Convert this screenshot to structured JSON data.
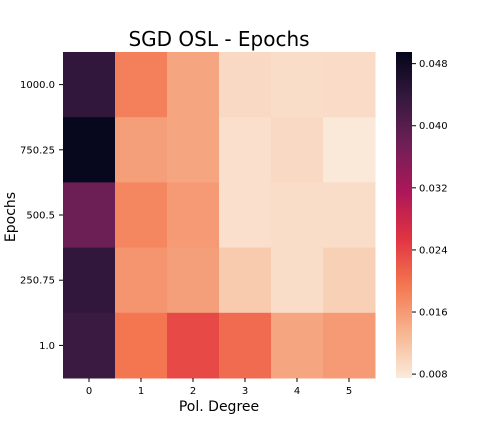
{
  "chart_data": {
    "type": "heatmap",
    "title": "SGD OSL - Epochs",
    "xlabel": "Pol. Degree",
    "ylabel": "Epochs",
    "x_categories": [
      "0",
      "1",
      "2",
      "3",
      "4",
      "5"
    ],
    "y_categories": [
      "1000.0",
      "750.25",
      "500.5",
      "250.75",
      "1.0"
    ],
    "values": [
      [
        0.044,
        0.0185,
        0.015,
        0.0095,
        0.009,
        0.0092
      ],
      [
        0.049,
        0.0155,
        0.015,
        0.0088,
        0.0095,
        0.0078
      ],
      [
        0.038,
        0.018,
        0.016,
        0.0088,
        0.009,
        0.009
      ],
      [
        0.044,
        0.0165,
        0.0155,
        0.011,
        0.009,
        0.0105
      ],
      [
        0.043,
        0.0195,
        0.0235,
        0.0205,
        0.015,
        0.016
      ]
    ],
    "colorbar": {
      "range": [
        0.0075,
        0.0495
      ],
      "ticks": [
        0.008,
        0.016,
        0.024,
        0.032,
        0.04,
        0.048
      ],
      "tick_labels": [
        "0.008",
        "0.016",
        "0.024",
        "0.032",
        "0.040",
        "0.048"
      ],
      "colormap": "rocket",
      "stops": [
        "#faebdd",
        "#f6b48e",
        "#f37651",
        "#e13342",
        "#ad1759",
        "#701f57",
        "#35193e",
        "#03051a"
      ]
    }
  }
}
